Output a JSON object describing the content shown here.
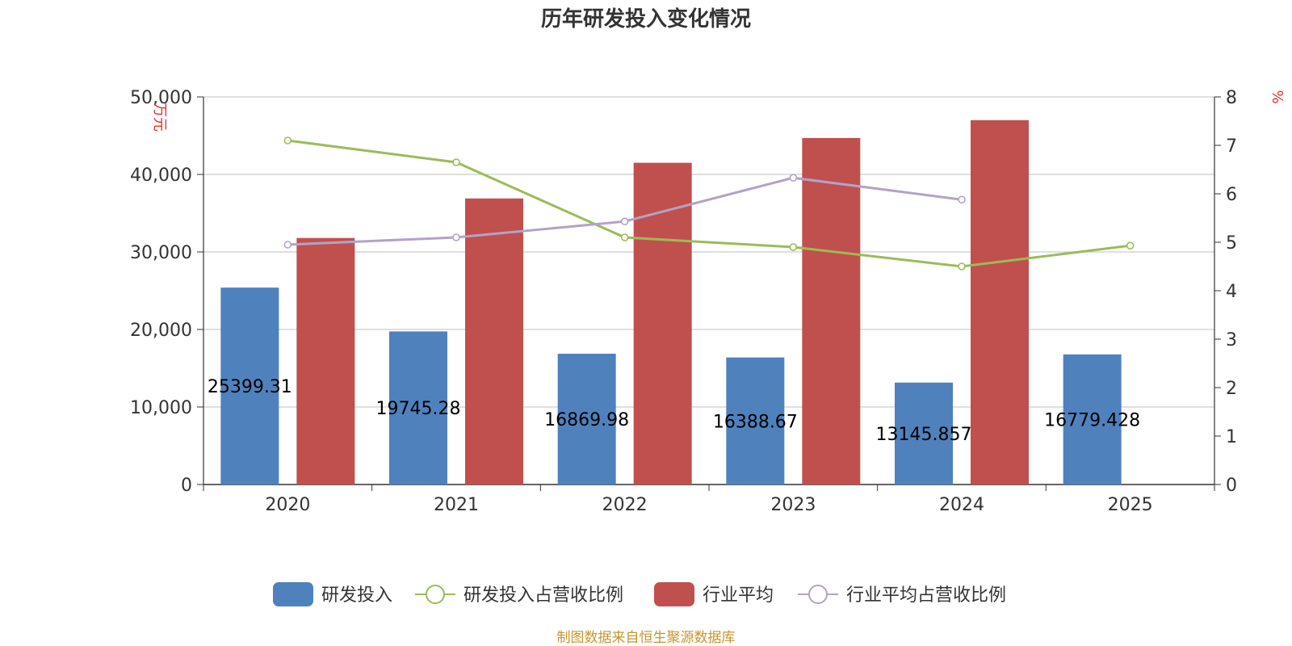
{
  "chart_data": {
    "type": "bar",
    "title": "历年研发投入变化情况",
    "categories": [
      "2020",
      "2021",
      "2022",
      "2023",
      "2024",
      "2025"
    ],
    "y_left": {
      "unit": "万元",
      "ylim": [
        0,
        50000
      ],
      "ticks": [
        "0",
        "10,000",
        "20,000",
        "30,000",
        "40,000",
        "50,000"
      ]
    },
    "y_right": {
      "unit": "%",
      "ylim": [
        0,
        8
      ],
      "ticks": [
        "0",
        "1",
        "2",
        "3",
        "4",
        "5",
        "6",
        "7",
        "8"
      ]
    },
    "series": [
      {
        "name": "研发投入",
        "type": "bar",
        "axis": "left",
        "color": "#4f81bd",
        "values": [
          25399.31,
          19745.28,
          16869.98,
          16388.67,
          13145.857,
          16779.428
        ],
        "labels": [
          "25399.31",
          "19745.28",
          "16869.98",
          "16388.67",
          "13145.857",
          "16779.428"
        ]
      },
      {
        "name": "研发投入占营收比例",
        "type": "line",
        "axis": "right",
        "color": "#9bbb59",
        "values": [
          7.1,
          6.65,
          5.1,
          4.9,
          4.5,
          4.93
        ]
      },
      {
        "name": "行业平均",
        "type": "bar",
        "axis": "left",
        "color": "#c0504d",
        "values": [
          31800,
          36900,
          41500,
          44700,
          47000,
          null
        ]
      },
      {
        "name": "行业平均占营收比例",
        "type": "line",
        "axis": "right",
        "color": "#b3a2c7",
        "values": [
          4.95,
          5.1,
          5.43,
          6.33,
          5.88,
          null
        ]
      }
    ],
    "grid": true,
    "legend_position": "bottom"
  },
  "source_note": "制图数据来自恒生聚源数据库"
}
